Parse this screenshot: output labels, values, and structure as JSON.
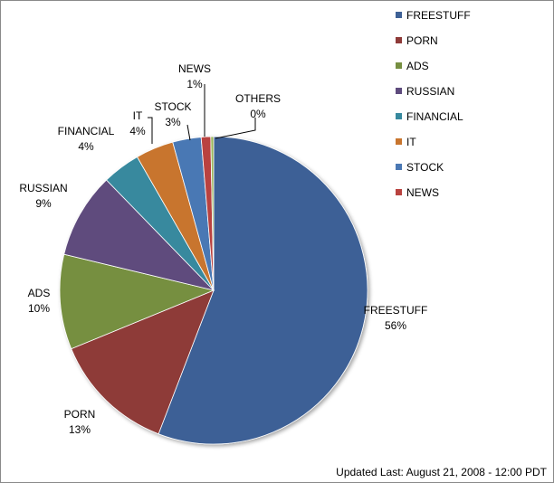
{
  "chart_data": {
    "type": "pie",
    "title": "",
    "slices": [
      {
        "name": "FREESTUFF",
        "value": 56,
        "label": "56%",
        "color": "#3E6196"
      },
      {
        "name": "PORN",
        "value": 13,
        "label": "13%",
        "color": "#8E3A38"
      },
      {
        "name": "ADS",
        "value": 10,
        "label": "10%",
        "color": "#768F41"
      },
      {
        "name": "RUSSIAN",
        "value": 9,
        "label": "9%",
        "color": "#5E4B7D"
      },
      {
        "name": "FINANCIAL",
        "value": 4,
        "label": "4%",
        "color": "#37899E"
      },
      {
        "name": "IT",
        "value": 4,
        "label": "4%",
        "color": "#C8752E"
      },
      {
        "name": "STOCK",
        "value": 3,
        "label": "3%",
        "color": "#4A78B4"
      },
      {
        "name": "NEWS",
        "value": 1,
        "label": "1%",
        "color": "#B9423F"
      },
      {
        "name": "OTHERS",
        "value": 0.3,
        "label": "0%",
        "color": "#9BB55A"
      }
    ],
    "legend": {
      "placement": "top-right",
      "entries": [
        "FREESTUFF",
        "PORN",
        "ADS",
        "RUSSIAN",
        "FINANCIAL",
        "IT",
        "STOCK",
        "NEWS"
      ]
    }
  },
  "footer": {
    "updated": "Updated Last: August 21, 2008 - 12:00 PDT"
  }
}
